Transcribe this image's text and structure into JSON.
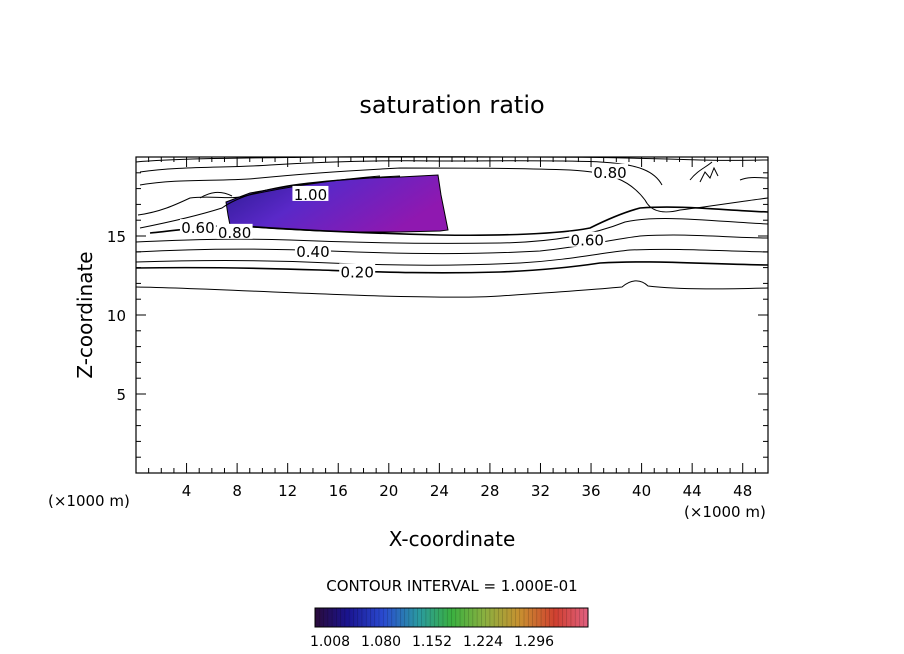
{
  "chart_data": {
    "type": "contour",
    "title": "saturation ratio",
    "xlabel": "X-coordinate",
    "ylabel": "Z-coordinate",
    "x_unit_left": "(×1000 m)",
    "x_unit_right": "(×1000 m)",
    "xlim": [
      0,
      50
    ],
    "ylim": [
      0,
      20
    ],
    "x_ticks": [
      4,
      8,
      12,
      16,
      20,
      24,
      28,
      32,
      36,
      40,
      44,
      48
    ],
    "y_ticks": [
      5,
      10,
      15
    ],
    "contour_interval_text": "CONTOUR INTERVAL = 1.000E-01",
    "contour_labels": [
      {
        "text": "0.20",
        "x": 17.5,
        "y": 12.7
      },
      {
        "text": "0.40",
        "x": 14.0,
        "y": 14.0
      },
      {
        "text": "0.60",
        "x": 35.7,
        "y": 14.7
      },
      {
        "text": "0.80",
        "x": 7.8,
        "y": 15.2
      },
      {
        "text": "0.60",
        "x": 4.9,
        "y": 15.5
      },
      {
        "text": "1.00",
        "x": 13.8,
        "y": 17.6
      },
      {
        "text": "0.80",
        "x": 37.5,
        "y": 19.0
      }
    ],
    "colorbar": {
      "ticks": [
        "1.008",
        "1.080",
        "1.152",
        "1.224",
        "1.296"
      ],
      "min": 1.008,
      "max": 1.296
    }
  }
}
